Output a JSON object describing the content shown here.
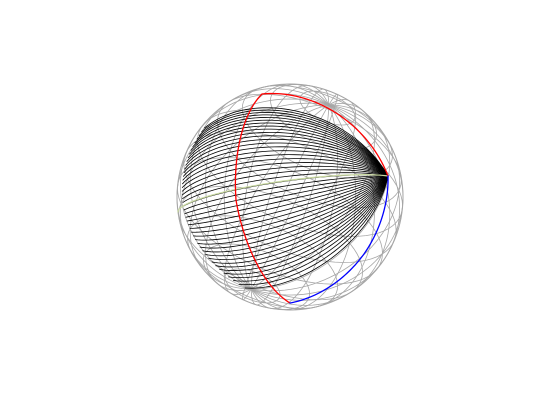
{
  "figure": {
    "description_type": "3d-wireframe-sphere",
    "wireframe_color": "#a6a6a6",
    "bundle_color": "#000000",
    "highlight_curve_color": "#c8d8a0",
    "arc_red_color": "#ff0000",
    "arc_blue_color": "#0000ff",
    "background_color": "#ffffff",
    "meridian_count": 24,
    "parallel_count": 11,
    "bundle_curve_count": 44
  }
}
